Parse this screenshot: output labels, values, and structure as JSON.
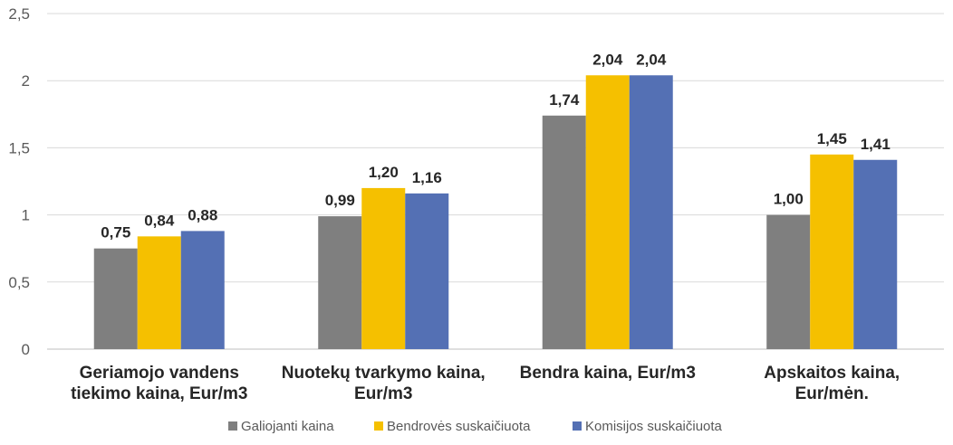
{
  "chart_data": {
    "type": "bar",
    "categories": [
      [
        "Geriamojo vandens",
        "tiekimo kaina, Eur/m3"
      ],
      [
        "Nuotekų tvarkymo kaina,",
        "Eur/m3"
      ],
      [
        "Bendra kaina, Eur/m3"
      ],
      [
        "Apskaitos kaina,",
        "Eur/mėn."
      ]
    ],
    "series": [
      {
        "name": "Galiojanti kaina",
        "color": "#7f7f7f",
        "values": [
          0.75,
          0.99,
          1.74,
          1.0
        ],
        "labels": [
          "0,75",
          "0,99",
          "1,74",
          "1,00"
        ]
      },
      {
        "name": "Bendrovės suskaičiuota",
        "color": "#f5c000",
        "values": [
          0.84,
          1.2,
          2.04,
          1.45
        ],
        "labels": [
          "0,84",
          "1,20",
          "2,04",
          "1,45"
        ]
      },
      {
        "name": "Komisijos suskaičiuota",
        "color": "#5470b4",
        "values": [
          0.88,
          1.16,
          2.04,
          1.41
        ],
        "labels": [
          "0,88",
          "1,16",
          "2,04",
          "1,41"
        ]
      }
    ],
    "yticks": [
      "0",
      "0,5",
      "1",
      "1,5",
      "2",
      "2,5"
    ],
    "ylim": [
      0,
      2.5
    ],
    "grid": true,
    "legend_position": "bottom"
  }
}
